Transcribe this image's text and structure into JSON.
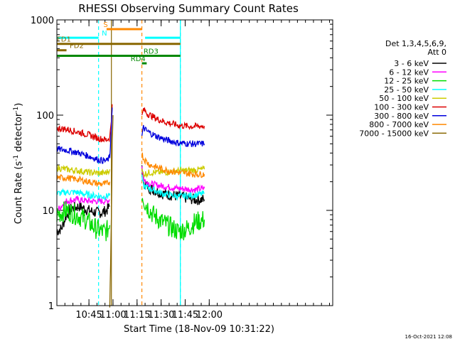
{
  "chart_data": {
    "type": "line",
    "title": "RHESSI Observing Summary Count Rates",
    "xlabel": "Start Time (18-Nov-09 10:31:22)",
    "ylabel_prefix": "Count Rate (s",
    "ylabel_sup": "-1",
    "ylabel_suffix": " detector",
    "ylabel_sup2": "-1",
    "ylabel_close": ")",
    "x_range_min": [
      -6,
      166
    ],
    "y_range": [
      1,
      1000
    ],
    "y_scale": "log",
    "x_ticks": [
      {
        "t": 14,
        "label": "10:45"
      },
      {
        "t": 29,
        "label": "11:00"
      },
      {
        "t": 44,
        "label": "11:15"
      },
      {
        "t": 59,
        "label": "11:30"
      },
      {
        "t": 74,
        "label": "11:45"
      },
      {
        "t": 89,
        "label": "12:00"
      }
    ],
    "y_ticks": [
      {
        "v": 1,
        "label": "1"
      },
      {
        "v": 10,
        "label": "10"
      },
      {
        "v": 100,
        "label": "100"
      },
      {
        "v": 1000,
        "label": "1000"
      }
    ],
    "legend": {
      "header1": "Det 1,3,4,5,6,9,",
      "header2": "Att 0",
      "entries": [
        {
          "label": "3 - 6 keV",
          "color": "#000000"
        },
        {
          "label": "6 - 12 keV",
          "color": "#ff00ff"
        },
        {
          "label": "12 - 25 keV",
          "color": "#00dd00"
        },
        {
          "label": "25 - 50 keV",
          "color": "#00ffff"
        },
        {
          "label": "50 - 100 keV",
          "color": "#cccc00"
        },
        {
          "label": "100 - 300 keV",
          "color": "#dd0000"
        },
        {
          "label": "300 - 800 keV",
          "color": "#0000dd"
        },
        {
          "label": "800 - 7000 keV",
          "color": "#ff8800"
        },
        {
          "label": "7000 - 15000 keV",
          "color": "#886600"
        }
      ]
    },
    "flag_bars": [
      {
        "label": "N",
        "color": "#00ffff",
        "y": 650,
        "segments": [
          [
            -6,
            20
          ],
          [
            49,
            71
          ]
        ],
        "label_t": 22,
        "label_color": "#00ffff"
      },
      {
        "label": "S",
        "color": "#ff8800",
        "y": 800,
        "segments": [
          [
            25,
            47
          ]
        ],
        "label_t": 23,
        "label_color": "#ff8800"
      },
      {
        "label": "FD1",
        "color": "#886600",
        "y": 560,
        "segments": [
          [
            -6,
            71
          ]
        ],
        "label_t": -6,
        "label_color": "#886600"
      },
      {
        "label": "FD2",
        "color": "#886600",
        "y": 480,
        "segments": [
          [
            -6,
            0
          ]
        ],
        "label_t": 2,
        "label_color": "#886600"
      },
      {
        "label": "RD3",
        "color": "#008800",
        "y": 420,
        "segments": [
          [
            -6,
            71
          ]
        ],
        "label_t": 48,
        "label_color": "#008800"
      },
      {
        "label": "RD4",
        "color": "#008800",
        "y": 350,
        "segments": [
          [
            47,
            50
          ]
        ],
        "label_t": 40,
        "label_color": "#008800"
      }
    ],
    "vlines": [
      {
        "t": 20,
        "color": "#00ffff",
        "dash": true
      },
      {
        "t": 28,
        "color": "#886600",
        "dash": false
      },
      {
        "t": 47,
        "color": "#ff8800",
        "dash": true
      },
      {
        "t": 71,
        "color": "#00ffff",
        "dash": false
      },
      {
        "t": 71,
        "color": "#00ffff",
        "dash": true
      }
    ],
    "series": [
      {
        "name": "3 - 6 keV",
        "color": "#000000",
        "seg1": [
          [
            -6,
            6
          ],
          [
            -3,
            6.5
          ],
          [
            0,
            9
          ],
          [
            3,
            10.5
          ],
          [
            8,
            11
          ],
          [
            14,
            10
          ],
          [
            18,
            9.5
          ],
          [
            22,
            9.5
          ],
          [
            25,
            10
          ],
          [
            27,
            11
          ]
        ],
        "seg2": [
          [
            47,
            30
          ],
          [
            48,
            20
          ],
          [
            52,
            17
          ],
          [
            60,
            15
          ],
          [
            70,
            14
          ],
          [
            80,
            13
          ],
          [
            86,
            13
          ]
        ]
      },
      {
        "name": "6 - 12 keV",
        "color": "#ff00ff",
        "seg1": [
          [
            -6,
            10
          ],
          [
            0,
            12.5
          ],
          [
            6,
            13
          ],
          [
            14,
            12.5
          ],
          [
            22,
            12.5
          ],
          [
            25,
            12.5
          ],
          [
            27,
            13
          ]
        ],
        "seg2": [
          [
            47,
            30
          ],
          [
            48,
            21
          ],
          [
            52,
            19
          ],
          [
            60,
            18
          ],
          [
            70,
            17
          ],
          [
            80,
            16.5
          ],
          [
            86,
            17
          ]
        ]
      },
      {
        "name": "12 - 25 keV",
        "color": "#00dd00",
        "seg1": [
          [
            -6,
            9
          ],
          [
            0,
            10
          ],
          [
            6,
            9
          ],
          [
            12,
            8
          ],
          [
            18,
            6.5
          ],
          [
            22,
            6
          ],
          [
            25,
            6
          ],
          [
            27,
            7
          ]
        ],
        "seg2": [
          [
            47,
            15
          ],
          [
            49,
            12
          ],
          [
            54,
            9
          ],
          [
            60,
            7.5
          ],
          [
            66,
            6.5
          ],
          [
            70,
            6
          ],
          [
            76,
            6.5
          ],
          [
            80,
            7.5
          ],
          [
            86,
            8
          ]
        ]
      },
      {
        "name": "25 - 50 keV",
        "color": "#00ffff",
        "seg1": [
          [
            -6,
            15
          ],
          [
            0,
            15.5
          ],
          [
            6,
            15.5
          ],
          [
            14,
            14.5
          ],
          [
            22,
            14
          ],
          [
            25,
            14
          ],
          [
            27,
            15
          ]
        ],
        "seg2": [
          [
            47,
            22
          ],
          [
            48,
            18
          ],
          [
            52,
            17
          ],
          [
            60,
            15
          ],
          [
            70,
            14
          ],
          [
            80,
            14.5
          ],
          [
            86,
            15
          ]
        ]
      },
      {
        "name": "50 - 100 keV",
        "color": "#cccc00",
        "seg1": [
          [
            -6,
            28
          ],
          [
            0,
            27
          ],
          [
            8,
            26
          ],
          [
            14,
            25
          ],
          [
            22,
            24.5
          ],
          [
            25,
            25
          ],
          [
            27,
            27
          ]
        ],
        "seg2": [
          [
            47,
            26
          ],
          [
            48,
            24
          ],
          [
            52,
            25
          ],
          [
            60,
            25
          ],
          [
            70,
            26
          ],
          [
            80,
            26.5
          ],
          [
            86,
            27
          ]
        ]
      },
      {
        "name": "100 - 300 keV",
        "color": "#dd0000",
        "seg1": [
          [
            -6,
            73
          ],
          [
            0,
            71
          ],
          [
            8,
            66
          ],
          [
            14,
            62
          ],
          [
            20,
            57
          ],
          [
            25,
            55
          ],
          [
            27,
            58
          ],
          [
            28,
            90
          ],
          [
            28.5,
            130
          ]
        ],
        "seg2": [
          [
            47,
            95
          ],
          [
            48,
            115
          ],
          [
            50,
            105
          ],
          [
            56,
            92
          ],
          [
            62,
            84
          ],
          [
            70,
            78
          ],
          [
            78,
            76
          ],
          [
            86,
            77
          ]
        ]
      },
      {
        "name": "300 - 800 keV",
        "color": "#0000dd",
        "seg1": [
          [
            -6,
            44
          ],
          [
            0,
            43
          ],
          [
            8,
            40
          ],
          [
            14,
            37
          ],
          [
            20,
            34
          ],
          [
            25,
            33
          ],
          [
            27,
            36
          ],
          [
            28,
            80
          ],
          [
            28.5,
            120
          ]
        ],
        "seg2": [
          [
            47,
            60
          ],
          [
            48,
            74
          ],
          [
            50,
            68
          ],
          [
            56,
            60
          ],
          [
            62,
            55
          ],
          [
            70,
            51
          ],
          [
            78,
            50
          ],
          [
            86,
            50
          ]
        ]
      },
      {
        "name": "800 - 7000 keV",
        "color": "#ff8800",
        "seg1": [
          [
            -6,
            22
          ],
          [
            0,
            22
          ],
          [
            8,
            21
          ],
          [
            14,
            20
          ],
          [
            20,
            19
          ],
          [
            25,
            19
          ],
          [
            27,
            20
          ]
        ],
        "seg2": [
          [
            47,
            40
          ],
          [
            48,
            35
          ],
          [
            52,
            30
          ],
          [
            60,
            27
          ],
          [
            70,
            25
          ],
          [
            80,
            24
          ],
          [
            86,
            24
          ]
        ]
      },
      {
        "name": "7000 - 15000 keV",
        "color": "#886600",
        "seg1": [
          [
            27,
            1
          ],
          [
            27.5,
            3
          ],
          [
            28,
            8
          ],
          [
            28.5,
            50
          ],
          [
            29,
            100
          ]
        ],
        "seg2": []
      }
    ],
    "footer_timestamp": "16-Oct-2021 12:08"
  }
}
